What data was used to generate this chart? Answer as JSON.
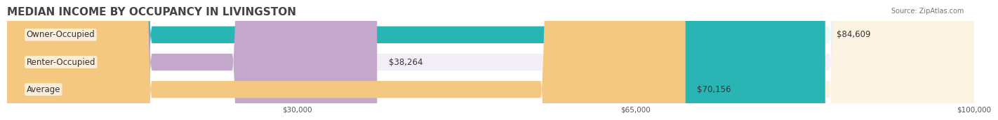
{
  "title": "MEDIAN INCOME BY OCCUPANCY IN LIVINGSTON",
  "source": "Source: ZipAtlas.com",
  "categories": [
    "Owner-Occupied",
    "Renter-Occupied",
    "Average"
  ],
  "values": [
    84609,
    38264,
    70156
  ],
  "bar_colors": [
    "#2ab5b5",
    "#c4a8cc",
    "#f5c882"
  ],
  "bar_bg_colors": [
    "#e8f8f8",
    "#f3eef7",
    "#fdf3e3"
  ],
  "value_labels": [
    "$84,609",
    "$38,264",
    "$70,156"
  ],
  "xlim": [
    0,
    100000
  ],
  "xticks": [
    30000,
    65000,
    100000
  ],
  "xtick_labels": [
    "$30,000",
    "$65,000",
    "$100,000"
  ],
  "title_fontsize": 11,
  "label_fontsize": 8.5,
  "bar_height": 0.62,
  "background_color": "#ffffff"
}
